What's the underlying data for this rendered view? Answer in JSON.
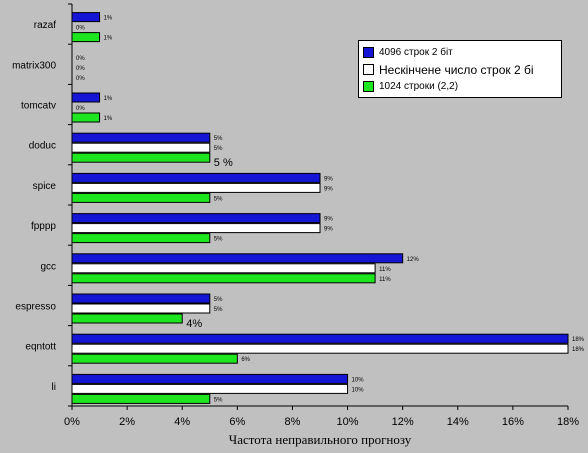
{
  "chart_data": {
    "type": "bar",
    "orientation": "horizontal",
    "categories": [
      "razaf",
      "matrix300",
      "tomcatv",
      "doduc",
      "spice",
      "fpppp",
      "gcc",
      "espresso",
      "eqntott",
      "li"
    ],
    "series": [
      {
        "name": "4096 строк 2 біт",
        "color": "#1515d6",
        "values": [
          1,
          0,
          1,
          5,
          9,
          9,
          12,
          5,
          18,
          10
        ],
        "labels": [
          "1%",
          "0%",
          "1%",
          "5%",
          "9%",
          "9%",
          "12%",
          "5%",
          "18%",
          "10%"
        ]
      },
      {
        "name": "Нескінчене число строк 2 бі",
        "color": "#ffffff",
        "values": [
          0,
          0,
          0,
          5,
          9,
          9,
          11,
          5,
          18,
          10
        ],
        "labels": [
          "0%",
          "0%",
          "0%",
          "5%",
          "9%",
          "9%",
          "11%",
          "5%",
          "18%",
          "10%"
        ]
      },
      {
        "name": "1024 строки (2,2)",
        "color": "#1ee61e",
        "values": [
          1,
          0,
          1,
          5,
          5,
          5,
          11,
          4,
          6,
          5
        ],
        "labels": [
          "1%",
          "0%",
          "1%",
          "5 %",
          "5%",
          "5%",
          "11%",
          "4%",
          "6%",
          "5%"
        ]
      }
    ],
    "xlabel": "Частота неправильного прогнозу",
    "ylabel": "",
    "xlim": [
      0,
      18
    ],
    "xticks": [
      "0%",
      "2%",
      "4%",
      "6%",
      "8%",
      "10%",
      "12%",
      "14%",
      "16%",
      "18%"
    ],
    "legend_position": "top-right",
    "grid": false
  }
}
